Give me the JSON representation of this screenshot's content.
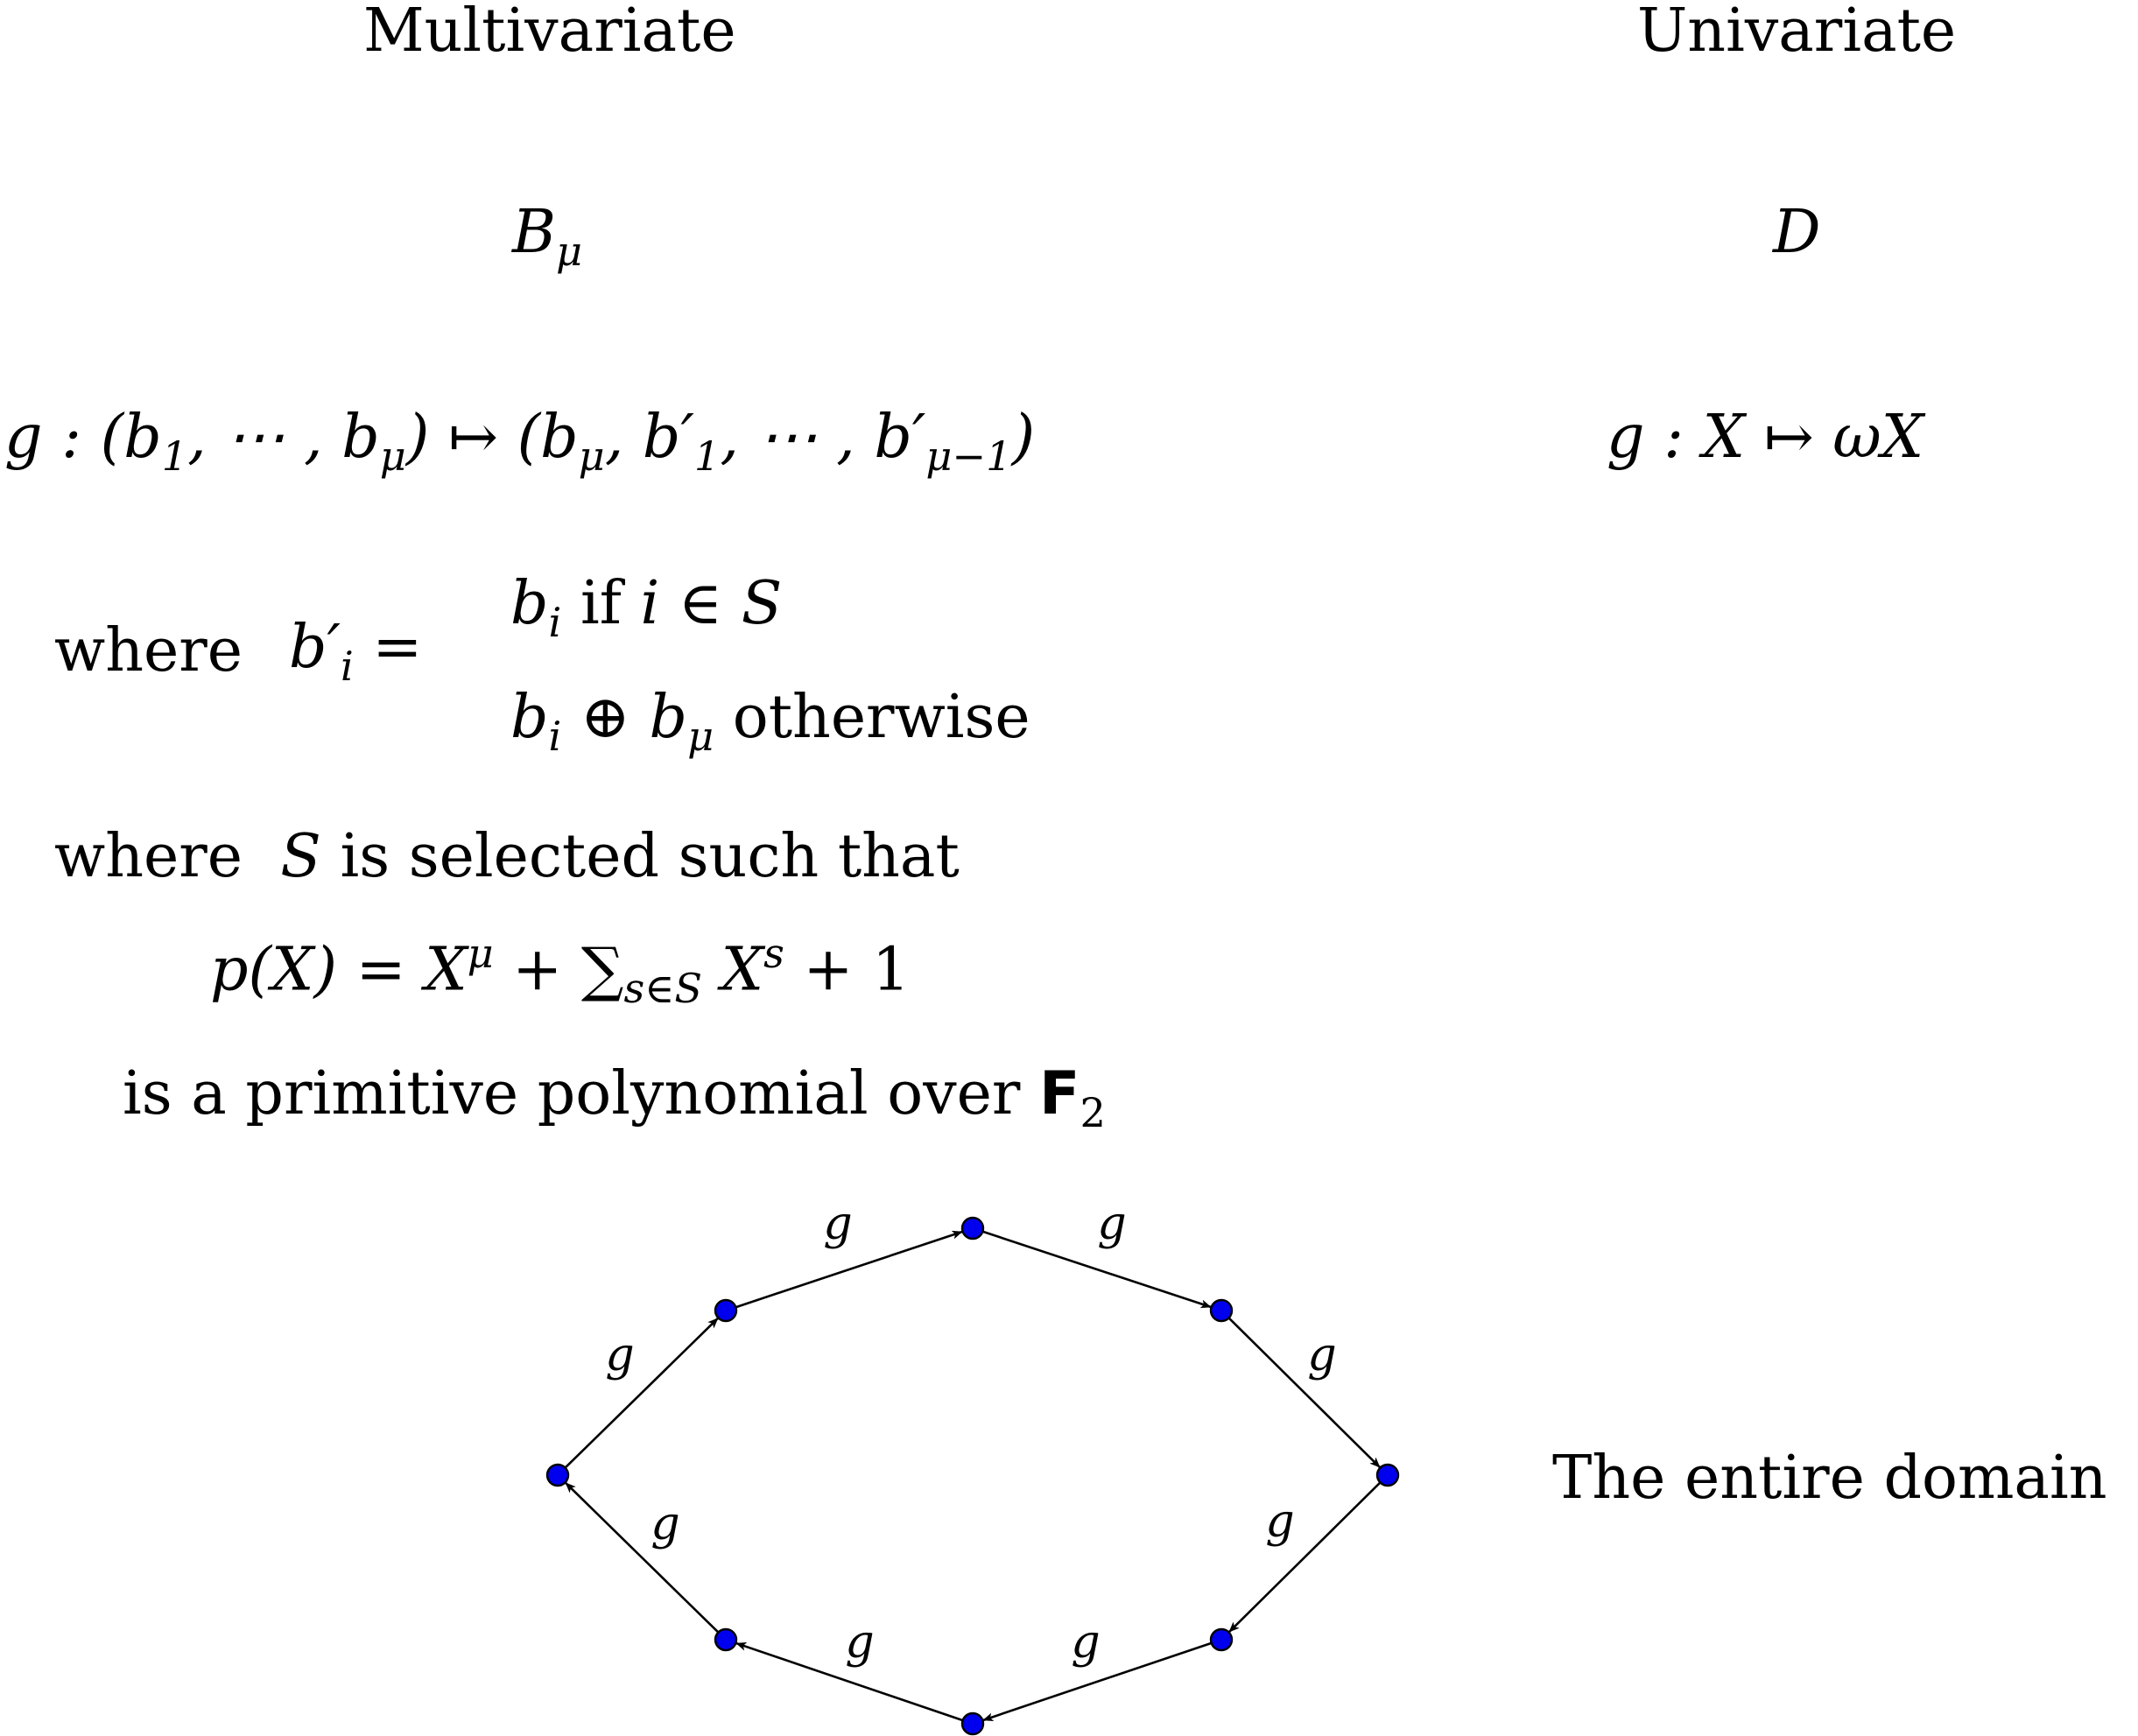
{
  "headers": {
    "multivariate": "Multivariate",
    "univariate": "Univariate"
  },
  "domains": {
    "multivariate_symbol": "B",
    "multivariate_subscript": "μ",
    "univariate_symbol": "D"
  },
  "maps": {
    "multivariate": {
      "g": "g",
      "colon": " : ",
      "lhs_open": "(b",
      "lhs_sub1": "1",
      "lhs_mid": ", ⋯ , b",
      "lhs_subm": "μ",
      "arrow_rhs_open": ") ↦ (b",
      "rhs_subm": "μ",
      "rhs_b1": ", b′",
      "rhs_sub1": "1",
      "rhs_mid": ", ⋯ , b′",
      "rhs_subm1": "μ−1",
      "rhs_close": ")"
    },
    "univariate": "g : X ↦ ωX"
  },
  "definition": {
    "where": "where",
    "lhs_b": "b′",
    "lhs_sub": "i",
    "equals": " =",
    "case1_b": "b",
    "case1_sub": "i",
    "case1_rest_a": " if ",
    "case1_rest_b": "i ∈ S",
    "case2_b": "b",
    "case2_sub": "i",
    "case2_op": " ⊕ b",
    "case2_subm": "μ",
    "case2_rest": " otherwise"
  },
  "selection": {
    "where": "where",
    "S": "S",
    "rest": " is selected such that",
    "poly_lhs": "p(X) = X",
    "poly_mu": "μ",
    "poly_plus": " + ∑",
    "poly_sum_sub": "s∈S",
    "poly_Xs": " X",
    "poly_s": "s",
    "poly_tail": " + 1",
    "primitive_text": "is a primitive polynomial over ",
    "field": "F",
    "field_sub": "2"
  },
  "cycle": {
    "edge_label": "g",
    "node_color": "#0000ee",
    "node_count": 8,
    "edge_count": 8,
    "caption": "The entire domain"
  }
}
